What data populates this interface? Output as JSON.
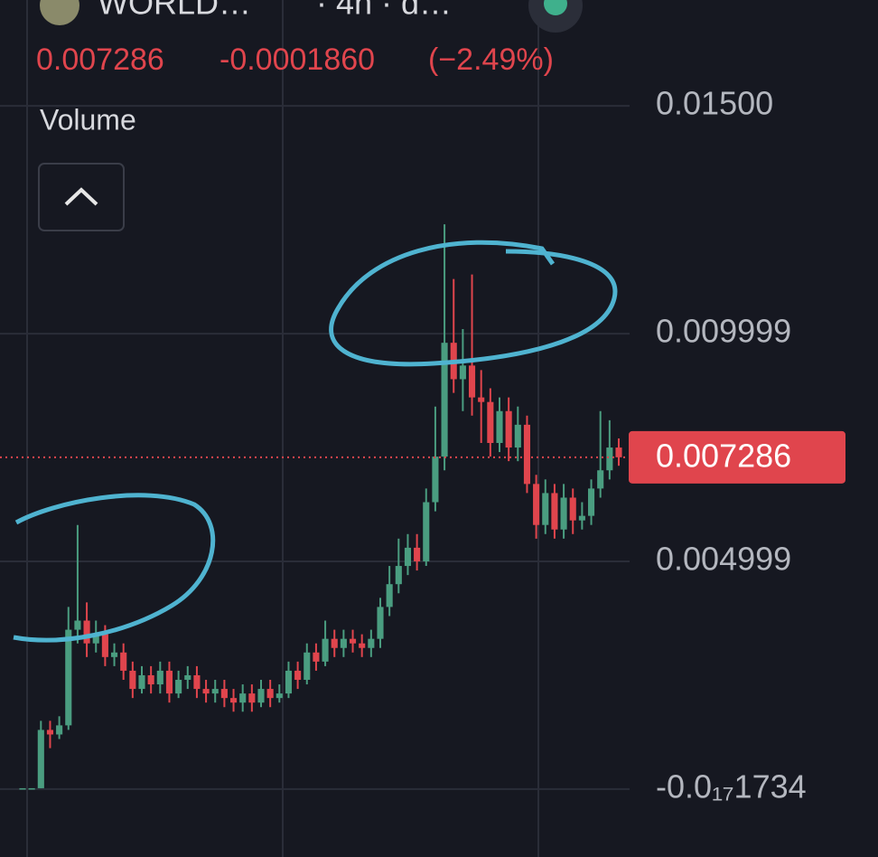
{
  "header": {
    "symbol": "WORLD…",
    "interval": "· 4h · d…",
    "price": "0.007286",
    "change": "-0.0001860",
    "change_pct": "(−2.49%)",
    "volume_label": "Volume"
  },
  "chart_data": {
    "type": "candlestick",
    "up_color": "#4a9d80",
    "down_color": "#e0454d",
    "grid": true,
    "ylim": [
      -0.00149,
      0.01544
    ],
    "yticks": [
      {
        "value": -1.734e-18,
        "label": "-0.0₁₇1734"
      },
      {
        "value": 0.004999,
        "label": "0.004999"
      },
      {
        "value": 0.009999,
        "label": "0.009999"
      },
      {
        "value": 0.015,
        "label": "0.01500"
      }
    ],
    "last_price": 0.007286,
    "open": [
      2e-05,
      2e-05,
      2e-05,
      0.0013,
      0.0012,
      0.0014,
      0.0035,
      0.0037,
      0.0032,
      0.0034,
      0.0029,
      0.003,
      0.0026,
      0.0022,
      0.0025,
      0.0023,
      0.0026,
      0.0021,
      0.0024,
      0.0025,
      0.0022,
      0.0021,
      0.0022,
      0.002,
      0.0019,
      0.0021,
      0.0019,
      0.0022,
      0.002,
      0.0021,
      0.0026,
      0.0024,
      0.003,
      0.0028,
      0.0033,
      0.0031,
      0.0033,
      0.0032,
      0.0031,
      0.0033,
      0.004,
      0.0045,
      0.0049,
      0.0053,
      0.005,
      0.0063,
      0.0073,
      0.0098,
      0.009,
      0.0093,
      0.0086,
      0.0085,
      0.0076,
      0.0083,
      0.0075,
      0.008,
      0.0067,
      0.0058,
      0.0065,
      0.0057,
      0.0064,
      0.0059,
      0.006,
      0.0066,
      0.007,
      0.0075
    ],
    "high": [
      2e-05,
      2e-05,
      0.0015,
      0.0015,
      0.0016,
      0.004,
      0.0058,
      0.0041,
      0.0037,
      0.0036,
      0.0032,
      0.0032,
      0.0028,
      0.0027,
      0.0027,
      0.0028,
      0.0028,
      0.0026,
      0.0027,
      0.0027,
      0.0024,
      0.0024,
      0.0024,
      0.0022,
      0.0023,
      0.0023,
      0.0024,
      0.0024,
      0.0023,
      0.0028,
      0.0028,
      0.0032,
      0.0032,
      0.0037,
      0.0035,
      0.0035,
      0.0035,
      0.0034,
      0.0035,
      0.0042,
      0.0049,
      0.0055,
      0.0056,
      0.0056,
      0.0066,
      0.0084,
      0.0124,
      0.0112,
      0.0101,
      0.0113,
      0.0092,
      0.0088,
      0.0086,
      0.0086,
      0.0084,
      0.0082,
      0.0069,
      0.0068,
      0.0067,
      0.0067,
      0.0066,
      0.0063,
      0.0068,
      0.0083,
      0.0081,
      0.0077
    ],
    "low": [
      2e-05,
      2e-05,
      2e-05,
      0.0009,
      0.0011,
      0.0013,
      0.0032,
      0.0029,
      0.003,
      0.0027,
      0.0027,
      0.0024,
      0.002,
      0.0021,
      0.0021,
      0.0021,
      0.0019,
      0.002,
      0.0022,
      0.002,
      0.0019,
      0.0019,
      0.0018,
      0.0017,
      0.0017,
      0.0017,
      0.0018,
      0.0018,
      0.0019,
      0.002,
      0.0022,
      0.0023,
      0.0026,
      0.0027,
      0.0029,
      0.0029,
      0.003,
      0.0029,
      0.0029,
      0.0031,
      0.0038,
      0.0043,
      0.0047,
      0.0048,
      0.0049,
      0.0061,
      0.007,
      0.0087,
      0.0083,
      0.0082,
      0.0076,
      0.0073,
      0.0074,
      0.0072,
      0.0072,
      0.0065,
      0.0055,
      0.0056,
      0.0055,
      0.0055,
      0.0056,
      0.0057,
      0.0058,
      0.0064,
      0.0068,
      0.0071
    ],
    "close": [
      2e-05,
      2e-05,
      0.0013,
      0.0012,
      0.0014,
      0.0035,
      0.0037,
      0.0032,
      0.0034,
      0.0029,
      0.003,
      0.0026,
      0.0022,
      0.0025,
      0.0023,
      0.0026,
      0.0021,
      0.0024,
      0.0025,
      0.0022,
      0.0021,
      0.0022,
      0.002,
      0.0019,
      0.0021,
      0.0019,
      0.0022,
      0.002,
      0.0021,
      0.0026,
      0.0024,
      0.003,
      0.0028,
      0.0033,
      0.0031,
      0.0033,
      0.0032,
      0.0031,
      0.0033,
      0.004,
      0.0045,
      0.0049,
      0.0053,
      0.005,
      0.0063,
      0.0073,
      0.0098,
      0.009,
      0.0093,
      0.0086,
      0.0085,
      0.0076,
      0.0083,
      0.0075,
      0.008,
      0.0067,
      0.0058,
      0.0065,
      0.0057,
      0.0064,
      0.0059,
      0.006,
      0.0066,
      0.007,
      0.0075,
      0.007286
    ]
  }
}
